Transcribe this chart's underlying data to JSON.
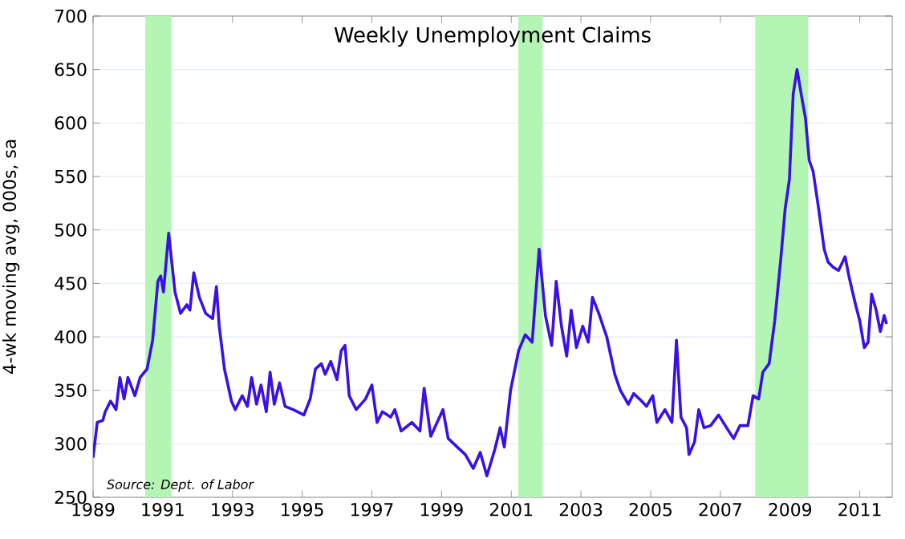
{
  "chart_data": {
    "type": "line",
    "title": "Weekly Unemployment Claims",
    "ylabel": "4-wk moving avg, 000s, sa",
    "annotations": [
      "*Source: Dept. of Labor*"
    ],
    "xlim": [
      1989,
      2011.93
    ],
    "ylim": [
      250,
      700
    ],
    "xticks": [
      1989,
      1991,
      1993,
      1995,
      1997,
      1999,
      2001,
      2003,
      2005,
      2007,
      2009,
      2011
    ],
    "yticks": [
      250,
      300,
      350,
      400,
      450,
      500,
      550,
      600,
      650,
      700
    ],
    "grid": "y",
    "line_style": "solid",
    "marker": "none",
    "bands": [
      {
        "axis": "x",
        "from": 1990.5,
        "to": 1991.25,
        "color": "#b3f5b3"
      },
      {
        "axis": "x",
        "from": 2001.2,
        "to": 2001.9,
        "color": "#b3f5b3"
      },
      {
        "axis": "x",
        "from": 2008.0,
        "to": 2009.52,
        "color": "#b3f5b3"
      }
    ],
    "series": [
      {
        "color": "#3a10e8",
        "x": [
          1989.0,
          1989.12,
          1989.28,
          1989.35,
          1989.5,
          1989.66,
          1989.77,
          1989.89,
          1990.0,
          1990.2,
          1990.35,
          1990.55,
          1990.71,
          1990.86,
          1990.94,
          1991.02,
          1991.17,
          1991.35,
          1991.51,
          1991.69,
          1991.78,
          1991.89,
          1992.05,
          1992.23,
          1992.43,
          1992.54,
          1992.62,
          1992.77,
          1992.97,
          1993.08,
          1993.28,
          1993.43,
          1993.55,
          1993.69,
          1993.82,
          1993.97,
          1994.08,
          1994.2,
          1994.35,
          1994.51,
          1994.74,
          1995.05,
          1995.23,
          1995.38,
          1995.55,
          1995.66,
          1995.82,
          1996.0,
          1996.12,
          1996.23,
          1996.35,
          1996.55,
          1996.82,
          1997.0,
          1997.15,
          1997.3,
          1997.54,
          1997.66,
          1997.84,
          1998.15,
          1998.38,
          1998.5,
          1998.69,
          1999.04,
          1999.19,
          1999.45,
          1999.68,
          1999.91,
          2000.11,
          2000.3,
          2000.53,
          2000.68,
          2000.8,
          2000.98,
          2001.21,
          2001.4,
          2001.6,
          2001.8,
          2001.98,
          2002.16,
          2002.29,
          2002.44,
          2002.59,
          2002.72,
          2002.87,
          2003.05,
          2003.21,
          2003.33,
          2003.51,
          2003.74,
          2003.97,
          2004.13,
          2004.36,
          2004.51,
          2004.74,
          2004.88,
          2005.06,
          2005.18,
          2005.41,
          2005.61,
          2005.74,
          2005.87,
          2006.03,
          2006.1,
          2006.26,
          2006.38,
          2006.53,
          2006.72,
          2006.95,
          2007.18,
          2007.38,
          2007.56,
          2007.79,
          2007.94,
          2008.1,
          2008.22,
          2008.4,
          2008.56,
          2008.74,
          2008.86,
          2008.98,
          2009.09,
          2009.2,
          2009.32,
          2009.44,
          2009.55,
          2009.66,
          2009.81,
          2009.98,
          2010.09,
          2010.24,
          2010.39,
          2010.58,
          2010.7,
          2010.88,
          2011.0,
          2011.13,
          2011.24,
          2011.34,
          2011.47,
          2011.59,
          2011.7,
          2011.77
        ],
        "values": [
          287,
          320,
          322,
          330,
          340,
          332,
          362,
          342,
          362,
          345,
          362,
          370,
          397,
          452,
          457,
          442,
          497,
          442,
          422,
          430,
          425,
          460,
          437,
          422,
          417,
          447,
          410,
          370,
          340,
          332,
          345,
          335,
          362,
          337,
          355,
          330,
          367,
          337,
          357,
          335,
          332,
          327,
          342,
          370,
          375,
          365,
          377,
          360,
          387,
          392,
          345,
          332,
          342,
          355,
          320,
          330,
          325,
          332,
          312,
          320,
          312,
          352,
          307,
          332,
          305,
          297,
          290,
          277,
          292,
          270,
          295,
          315,
          297,
          350,
          387,
          402,
          395,
          482,
          420,
          392,
          452,
          410,
          382,
          425,
          390,
          410,
          395,
          437,
          422,
          400,
          365,
          350,
          337,
          347,
          340,
          335,
          345,
          320,
          332,
          320,
          397,
          325,
          315,
          290,
          302,
          332,
          315,
          317,
          327,
          315,
          305,
          317,
          317,
          345,
          342,
          367,
          375,
          415,
          475,
          520,
          547,
          627,
          650,
          627,
          605,
          565,
          555,
          522,
          482,
          470,
          465,
          462,
          475,
          455,
          430,
          415,
          390,
          395,
          440,
          425,
          405,
          420,
          412
        ]
      }
    ]
  }
}
